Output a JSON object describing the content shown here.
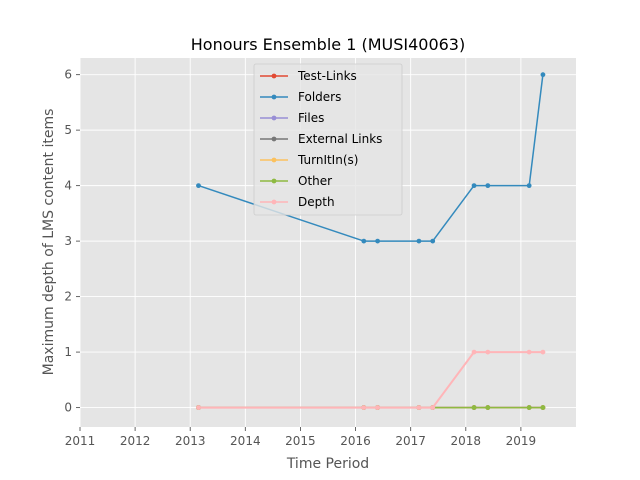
{
  "chart_data": {
    "type": "line",
    "title": "Honours Ensemble 1 (MUSI40063)",
    "xlabel": "Time Period",
    "ylabel": "Maximum depth of LMS content items",
    "xlim": [
      2011,
      2020
    ],
    "ylim": [
      -0.35,
      6.3
    ],
    "xticks": [
      "2011",
      "2012",
      "2013",
      "2014",
      "2015",
      "2016",
      "2017",
      "2018",
      "2019"
    ],
    "yticks": [
      "0",
      "1",
      "2",
      "3",
      "4",
      "5",
      "6"
    ],
    "x": [
      2013.15,
      2016.15,
      2016.4,
      2017.15,
      2017.4,
      2018.15,
      2018.4,
      2019.15,
      2019.4
    ],
    "grid": true,
    "legend_position": "top-center",
    "series": [
      {
        "name": "Test-Links",
        "color": "#e24a33",
        "values": [
          0,
          0,
          0,
          0,
          0,
          0,
          0,
          0,
          0
        ]
      },
      {
        "name": "Folders",
        "color": "#348abd",
        "values": [
          4,
          3,
          3,
          3,
          3,
          4,
          4,
          4,
          6
        ]
      },
      {
        "name": "Files",
        "color": "#988ed5",
        "values": [
          0,
          0,
          0,
          0,
          0,
          0,
          0,
          0,
          0
        ]
      },
      {
        "name": "External Links",
        "color": "#777777",
        "values": [
          0,
          0,
          0,
          0,
          0,
          0,
          0,
          0,
          0
        ]
      },
      {
        "name": "TurnItIn(s)",
        "color": "#fbc15e",
        "values": [
          0,
          0,
          0,
          0,
          0,
          0,
          0,
          0,
          0
        ]
      },
      {
        "name": "Other",
        "color": "#8eba42",
        "values": [
          0,
          0,
          0,
          0,
          0,
          0,
          0,
          0,
          0
        ]
      },
      {
        "name": "Depth",
        "color": "#ffb5b8",
        "values": [
          0,
          0,
          0,
          0,
          0,
          1,
          1,
          1,
          1
        ]
      }
    ]
  }
}
